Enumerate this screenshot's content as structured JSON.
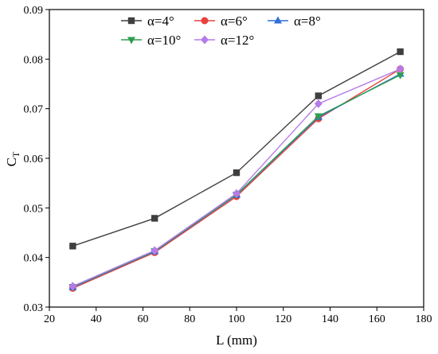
{
  "chart_data": {
    "type": "line",
    "xlabel": "L (mm)",
    "ylabel": "C",
    "ylabel_sub": "T",
    "xlim": [
      20,
      180
    ],
    "ylim": [
      0.03,
      0.09
    ],
    "xticks": [
      20,
      40,
      60,
      80,
      100,
      120,
      140,
      160,
      180
    ],
    "yticks": [
      0.03,
      0.04,
      0.05,
      0.06,
      0.07,
      0.08,
      0.09
    ],
    "grid": false,
    "legend_position": "top-left",
    "x": [
      30,
      65,
      100,
      135,
      170
    ],
    "series": [
      {
        "name": "α=4°",
        "color": "#3f3f3f",
        "marker": "square",
        "values": [
          0.0423,
          0.0479,
          0.0571,
          0.0726,
          0.0815
        ]
      },
      {
        "name": "α=6°",
        "color": "#e8413c",
        "marker": "circle",
        "values": [
          0.0338,
          0.041,
          0.0523,
          0.068,
          0.078
        ]
      },
      {
        "name": "α=8°",
        "color": "#2f6fd6",
        "marker": "triangle-up",
        "values": [
          0.034,
          0.0412,
          0.0526,
          0.0683,
          0.077
        ]
      },
      {
        "name": "α=10°",
        "color": "#2e9e4e",
        "marker": "triangle-down",
        "values": [
          0.0341,
          0.0413,
          0.0527,
          0.0685,
          0.0768
        ]
      },
      {
        "name": "α=12°",
        "color": "#b57be8",
        "marker": "diamond",
        "values": [
          0.0342,
          0.0414,
          0.0529,
          0.071,
          0.078
        ]
      }
    ]
  }
}
